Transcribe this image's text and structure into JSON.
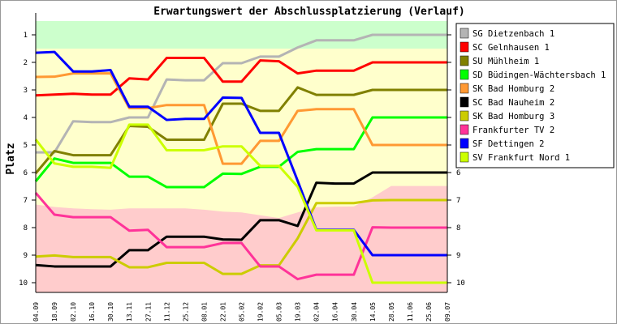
{
  "chart_data": {
    "type": "line",
    "title": "Erwartungswert der Abschlussplatzierung (Verlauf)",
    "ylabel": "Platz",
    "xlabel": "",
    "ylim": [
      0.5,
      10.35
    ],
    "y_inverted": true,
    "yticks": [
      1,
      2,
      3,
      4,
      5,
      6,
      7,
      8,
      9,
      10
    ],
    "legend_position": "right",
    "categories": [
      "04.09",
      "18.09",
      "02.10",
      "16.10",
      "30.10",
      "13.11",
      "27.11",
      "11.12",
      "25.12",
      "08.01",
      "22.01",
      "05.02",
      "19.02",
      "05.03",
      "19.03",
      "02.04",
      "16.04",
      "30.04",
      "14.05",
      "28.05",
      "11.06",
      "25.06",
      "09.07"
    ],
    "zones": {
      "promotion_upper": 1.5,
      "relegation_boundary": [
        7.16,
        7.25,
        7.3,
        7.33,
        7.35,
        7.3,
        7.3,
        7.3,
        7.3,
        7.35,
        7.42,
        7.45,
        7.55,
        7.65,
        7.45,
        7.26,
        7.24,
        7.23,
        6.9,
        6.49,
        6.49,
        6.49,
        6.49
      ],
      "colors": {
        "promotion": "#ccffcc",
        "middle": "#ffffcc",
        "relegation": "#ffcccc"
      }
    },
    "series": [
      {
        "name": "SG Dietzenbach 1",
        "color": "#b4b4b4",
        "values": [
          5.27,
          5.27,
          4.14,
          4.17,
          4.17,
          4.0,
          4.0,
          2.62,
          2.65,
          2.65,
          2.03,
          2.03,
          1.79,
          1.79,
          1.46,
          1.2,
          1.2,
          1.2,
          1.0,
          1.0,
          1.0,
          1.0,
          1.0
        ]
      },
      {
        "name": "SC Gelnhausen 1",
        "color": "#ff0000",
        "values": [
          3.2,
          3.17,
          3.14,
          3.17,
          3.17,
          2.58,
          2.62,
          1.84,
          1.84,
          1.84,
          2.7,
          2.7,
          1.93,
          1.96,
          2.4,
          2.3,
          2.3,
          2.3,
          2.0,
          2.0,
          2.0,
          2.0,
          2.0
        ]
      },
      {
        "name": "SU Mühlheim 1",
        "color": "#808000",
        "values": [
          6.03,
          5.22,
          5.37,
          5.37,
          5.37,
          4.31,
          4.34,
          4.81,
          4.81,
          4.81,
          3.5,
          3.5,
          3.76,
          3.76,
          2.91,
          3.18,
          3.18,
          3.18,
          3.0,
          3.0,
          3.0,
          3.0,
          3.0
        ]
      },
      {
        "name": "SD Büdingen-Wächtersbach 1",
        "color": "#00ff00",
        "values": [
          6.32,
          5.49,
          5.65,
          5.65,
          5.65,
          6.15,
          6.15,
          6.53,
          6.53,
          6.53,
          6.04,
          6.05,
          5.79,
          5.79,
          5.25,
          5.15,
          5.15,
          5.15,
          4.0,
          4.0,
          4.0,
          4.0,
          4.0
        ]
      },
      {
        "name": "SK Bad Homburg 2",
        "color": "#ff9933",
        "values": [
          2.53,
          2.52,
          2.4,
          2.4,
          2.4,
          3.66,
          3.66,
          3.55,
          3.55,
          3.55,
          5.68,
          5.68,
          4.85,
          4.85,
          3.76,
          3.7,
          3.7,
          3.7,
          5.0,
          5.0,
          5.0,
          5.0,
          5.0
        ]
      },
      {
        "name": "SC Bad Nauheim 2",
        "color": "#000000",
        "values": [
          9.36,
          9.41,
          9.41,
          9.41,
          9.41,
          8.82,
          8.82,
          8.33,
          8.33,
          8.33,
          8.43,
          8.44,
          7.73,
          7.73,
          7.94,
          6.37,
          6.4,
          6.4,
          6.0,
          6.0,
          6.0,
          6.0,
          6.0
        ]
      },
      {
        "name": "SK Bad Homburg 3",
        "color": "#cccc00",
        "values": [
          9.05,
          9.01,
          9.07,
          9.07,
          9.07,
          9.44,
          9.44,
          9.28,
          9.28,
          9.28,
          9.68,
          9.68,
          9.37,
          9.37,
          8.39,
          7.11,
          7.11,
          7.11,
          7.01,
          7.0,
          7.0,
          7.0,
          7.0
        ]
      },
      {
        "name": "Frankfurter TV 2",
        "color": "#ff3399",
        "values": [
          6.74,
          7.53,
          7.62,
          7.62,
          7.62,
          8.11,
          8.08,
          8.71,
          8.71,
          8.71,
          8.56,
          8.56,
          9.41,
          9.41,
          9.87,
          9.71,
          9.71,
          9.71,
          7.99,
          8.0,
          8.0,
          8.0,
          8.0
        ]
      },
      {
        "name": "SF Dettingen 2",
        "color": "#0000ff",
        "values": [
          1.65,
          1.62,
          2.33,
          2.33,
          2.28,
          3.61,
          3.61,
          4.09,
          4.05,
          4.05,
          3.28,
          3.29,
          4.56,
          4.56,
          6.3,
          8.08,
          8.08,
          8.08,
          9.0,
          9.0,
          9.0,
          9.0,
          9.0
        ]
      },
      {
        "name": "SV Frankfurt Nord 1",
        "color": "#ccff00",
        "values": [
          4.8,
          5.67,
          5.79,
          5.79,
          5.83,
          4.26,
          4.26,
          5.19,
          5.19,
          5.19,
          5.05,
          5.05,
          5.76,
          5.76,
          6.52,
          8.1,
          8.1,
          8.1,
          10.0,
          10.0,
          10.0,
          10.0,
          10.0
        ]
      }
    ]
  }
}
